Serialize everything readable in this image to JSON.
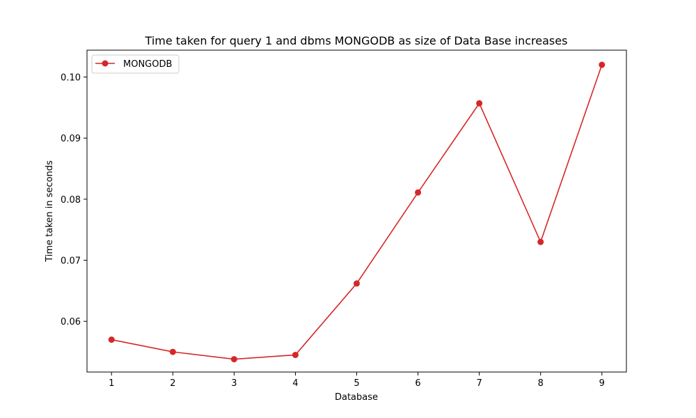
{
  "chart_data": {
    "type": "line",
    "title": "Time taken for query 1 and dbms MONGODB as size of Data Base increases",
    "xlabel": "Database",
    "ylabel": "Time taken in seconds",
    "x": [
      1,
      2,
      3,
      4,
      5,
      6,
      7,
      8,
      9
    ],
    "x_ticks": [
      "1",
      "2",
      "3",
      "4",
      "5",
      "6",
      "7",
      "8",
      "9"
    ],
    "xlim": [
      0.6,
      9.4
    ],
    "y_ticks": [
      "0.06",
      "0.07",
      "0.08",
      "0.09",
      "0.10"
    ],
    "y_tick_values": [
      0.06,
      0.07,
      0.08,
      0.09,
      0.1
    ],
    "ylim": [
      0.0517,
      0.1044
    ],
    "series": [
      {
        "name": "MONGODB",
        "color": "#d62728",
        "marker": "circle",
        "values": [
          0.057,
          0.055,
          0.0538,
          0.0545,
          0.0662,
          0.0811,
          0.0957,
          0.073,
          0.102
        ]
      }
    ],
    "legend": {
      "position": "top-left"
    },
    "grid": false
  }
}
